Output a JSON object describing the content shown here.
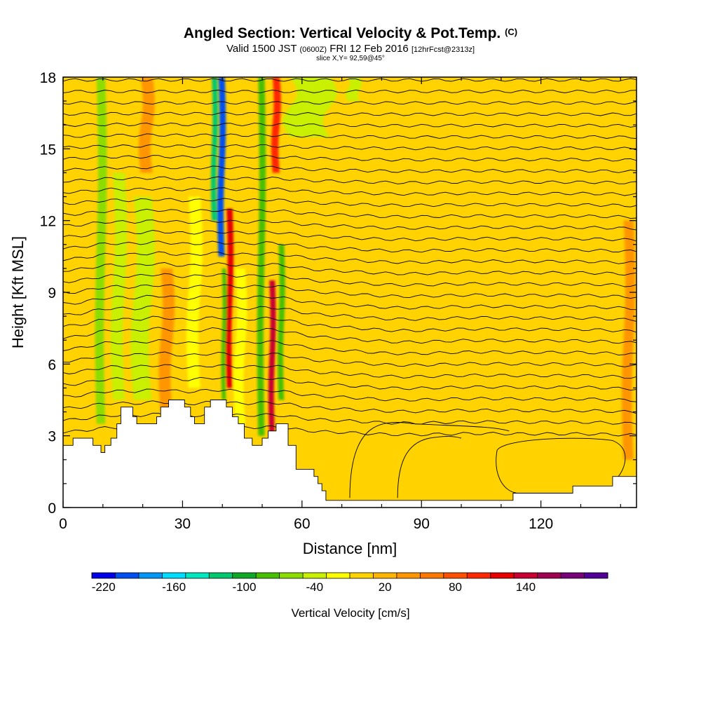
{
  "titles": {
    "main": "Angled Section: Vertical Velocity & Pot.Temp.",
    "main_tag": "(C)",
    "valid_prefix": "Valid 1500 JST",
    "valid_z": "(0600Z)",
    "valid_date": "FRI 12 Feb 2016",
    "forecast": "[12hrFcst@2313z]",
    "slice": "slice X,Y= 92,59@45°"
  },
  "chart_data": {
    "type": "heatmap",
    "xlabel": "Distance [nm]",
    "ylabel": "Height [Kft MSL]",
    "xlim": [
      0,
      144
    ],
    "ylim": [
      0,
      18
    ],
    "x_ticks": [
      0,
      30,
      60,
      90,
      120
    ],
    "y_ticks": [
      0,
      3,
      6,
      9,
      12,
      15,
      18
    ],
    "fill_variable": "vertical velocity",
    "contour_variable": "potential temperature",
    "background_color": "#ffd200",
    "velocity_bands": [
      {
        "x": 9.5,
        "w": 2.2,
        "y0": 3.5,
        "y1": 18,
        "v": -60
      },
      {
        "x": 14,
        "w": 3,
        "y0": 4.5,
        "y1": 14,
        "v": -50
      },
      {
        "x": 20,
        "w": 4.5,
        "y0": 4.5,
        "y1": 13,
        "v": -40
      },
      {
        "x": 26,
        "w": 3,
        "y0": 4,
        "y1": 10,
        "v": 40
      },
      {
        "x": 21,
        "w": 3,
        "y0": 14,
        "y1": 18,
        "v": 40
      },
      {
        "x": 33,
        "w": 3,
        "y0": 5,
        "y1": 13,
        "v": -20
      },
      {
        "x": 38,
        "w": 1.3,
        "y0": 12,
        "y1": 18,
        "v": -120
      },
      {
        "x": 39.8,
        "w": 1.6,
        "y0": 10.5,
        "y1": 18,
        "v": -200
      },
      {
        "x": 41.8,
        "w": 1.5,
        "y0": 5,
        "y1": 12.5,
        "v": 110
      },
      {
        "x": 40.4,
        "w": 1.0,
        "y0": 4.5,
        "y1": 10,
        "v": -80
      },
      {
        "x": 44.5,
        "w": 2.5,
        "y0": 3.5,
        "y1": 10,
        "v": -30
      },
      {
        "x": 49.8,
        "w": 1.6,
        "y0": 3,
        "y1": 18,
        "v": -90
      },
      {
        "x": 52.5,
        "w": 1.4,
        "y0": 3,
        "y1": 9.5,
        "v": 130
      },
      {
        "x": 54.8,
        "w": 1.4,
        "y0": 4.5,
        "y1": 11,
        "v": -90
      },
      {
        "x": 53.5,
        "w": 1.8,
        "y0": 14,
        "y1": 18,
        "v": 90
      },
      {
        "x": 62,
        "w": 10,
        "y0": 15.5,
        "y1": 18,
        "v": -50
      },
      {
        "x": 73,
        "w": 3,
        "y0": 17,
        "y1": 18,
        "v": -40
      },
      {
        "x": 86,
        "w": 3,
        "y0": 13,
        "y1": 18,
        "v": -10
      },
      {
        "x": 92,
        "w": 4,
        "y0": 1,
        "y1": 4,
        "v": 5
      },
      {
        "x": 101,
        "w": 5,
        "y0": 0.5,
        "y1": 3.5,
        "v": 5
      },
      {
        "x": 112,
        "w": 5,
        "y0": 0.5,
        "y1": 2.6,
        "v": 5
      },
      {
        "x": 122,
        "w": 6,
        "y0": 12,
        "y1": 18,
        "v": -10
      },
      {
        "x": 142,
        "w": 2.5,
        "y0": 2,
        "y1": 12,
        "v": 30
      }
    ],
    "terrain": [
      [
        0,
        2.6
      ],
      [
        2.5,
        2.6
      ],
      [
        2.5,
        2.9
      ],
      [
        7.5,
        2.9
      ],
      [
        7.5,
        2.6
      ],
      [
        9.5,
        2.6
      ],
      [
        9.5,
        2.3
      ],
      [
        10.5,
        2.3
      ],
      [
        10.5,
        2.6
      ],
      [
        12,
        2.6
      ],
      [
        12,
        2.9
      ],
      [
        13.5,
        2.9
      ],
      [
        13.5,
        3.5
      ],
      [
        14.5,
        3.5
      ],
      [
        14.5,
        4.2
      ],
      [
        17.5,
        4.2
      ],
      [
        17.5,
        3.8
      ],
      [
        18.5,
        3.8
      ],
      [
        18.5,
        3.5
      ],
      [
        23.5,
        3.5
      ],
      [
        23.5,
        3.8
      ],
      [
        24.5,
        3.8
      ],
      [
        24.5,
        4.2
      ],
      [
        26.5,
        4.2
      ],
      [
        26.5,
        4.5
      ],
      [
        30.5,
        4.5
      ],
      [
        30.5,
        4.2
      ],
      [
        32,
        4.2
      ],
      [
        32,
        3.8
      ],
      [
        33,
        3.8
      ],
      [
        33,
        3.5
      ],
      [
        35.5,
        3.5
      ],
      [
        35.5,
        4.2
      ],
      [
        37,
        4.2
      ],
      [
        37,
        4.5
      ],
      [
        41,
        4.5
      ],
      [
        41,
        4.2
      ],
      [
        42.5,
        4.2
      ],
      [
        42.5,
        3.8
      ],
      [
        44,
        3.8
      ],
      [
        44,
        3.5
      ],
      [
        45.5,
        3.5
      ],
      [
        45.5,
        2.9
      ],
      [
        47.5,
        2.9
      ],
      [
        47.5,
        2.6
      ],
      [
        50,
        2.6
      ],
      [
        50,
        2.9
      ],
      [
        51.5,
        2.9
      ],
      [
        51.5,
        3.2
      ],
      [
        53.5,
        3.2
      ],
      [
        53.5,
        3.5
      ],
      [
        56.5,
        3.5
      ],
      [
        56.5,
        2.6
      ],
      [
        58.5,
        2.6
      ],
      [
        58.5,
        1.6
      ],
      [
        63,
        1.6
      ],
      [
        63,
        1.3
      ],
      [
        64,
        1.3
      ],
      [
        64,
        1.0
      ],
      [
        65,
        1.0
      ],
      [
        65,
        0.7
      ],
      [
        66,
        0.7
      ],
      [
        66,
        0.3
      ],
      [
        113,
        0.3
      ],
      [
        113,
        0.6
      ],
      [
        128,
        0.6
      ],
      [
        128,
        0.9
      ],
      [
        138,
        0.9
      ],
      [
        138,
        1.3
      ],
      [
        144,
        1.3
      ]
    ],
    "colorbar": {
      "label": "Vertical Velocity [cm/s]",
      "min": -230,
      "step": 20,
      "tick_labels": [
        "-220",
        "-160",
        "-100",
        "-40",
        "20",
        "80",
        "140"
      ],
      "colors": [
        "#0000e6",
        "#0050f0",
        "#0096f5",
        "#00dcff",
        "#00e6be",
        "#00c86e",
        "#10a828",
        "#46c000",
        "#8cdc00",
        "#c8f000",
        "#ffff00",
        "#ffd200",
        "#ffb400",
        "#ff9600",
        "#ff7800",
        "#ff5000",
        "#ff2800",
        "#e60000",
        "#c80032",
        "#a00050",
        "#780078",
        "#500096"
      ]
    }
  }
}
